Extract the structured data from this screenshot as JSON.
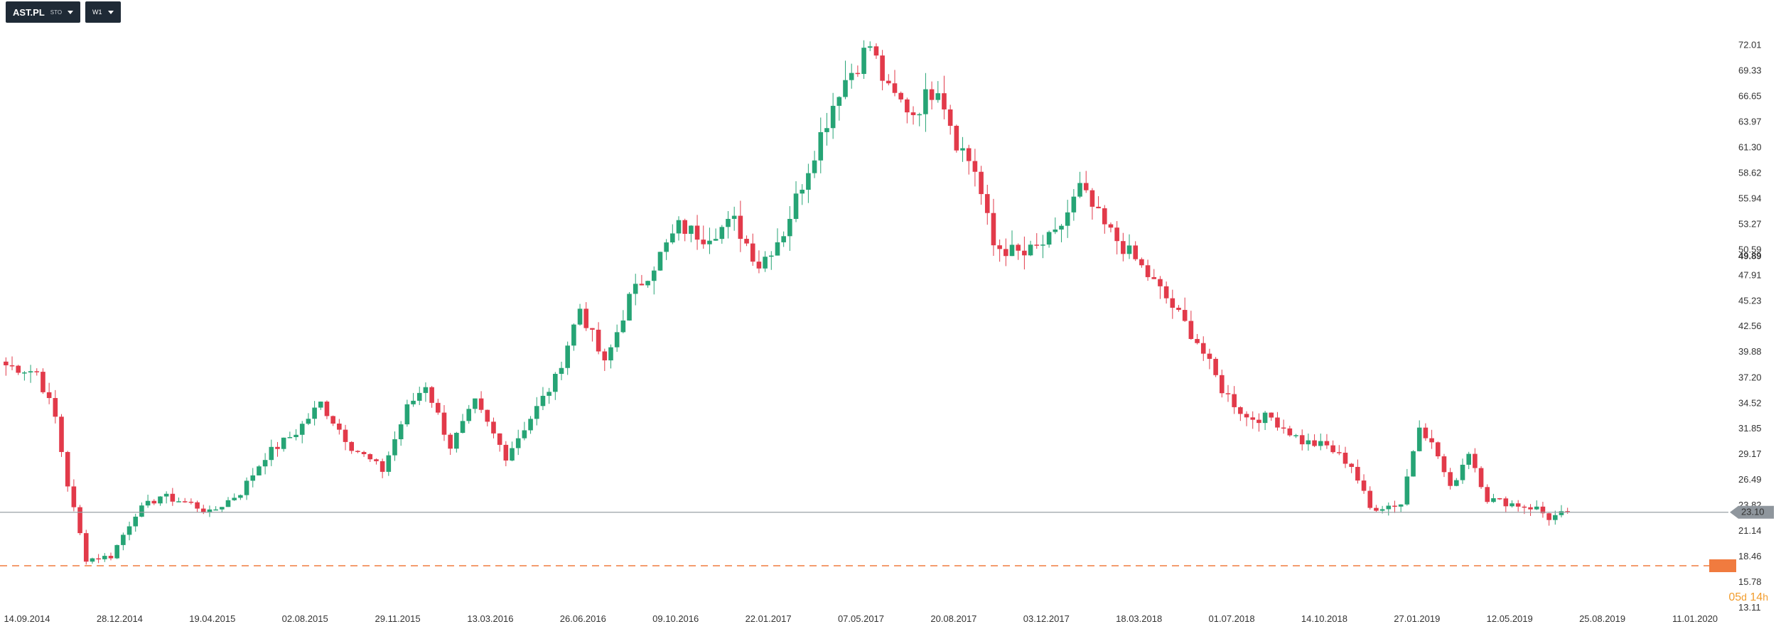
{
  "symbol": {
    "ticker": "AST.PL",
    "market": "STO"
  },
  "timeframe": "W1",
  "countdown": {
    "days": "05",
    "days_unit": "d",
    "hours": "14",
    "hours_unit": "h"
  },
  "colors": {
    "up": "#26a475",
    "down": "#e23a4a",
    "price_line": "#9aa0a6",
    "level_line": "#f07b3f",
    "label_bg": "#f07b3f"
  },
  "chart_data": {
    "type": "candlestick",
    "ylim": [
      13.11,
      74.5
    ],
    "y_ticks": [
      "72.01",
      "69.33",
      "66.65",
      "63.97",
      "61.30",
      "58.62",
      "55.94",
      "53.27",
      "50.59",
      "47.91",
      "45.23",
      "42.56",
      "39.88",
      "37.20",
      "34.52",
      "31.85",
      "29.17",
      "26.49",
      "23.82",
      "21.14",
      "18.46",
      "15.78",
      "13.11"
    ],
    "x_ticks": [
      "14.09.2014",
      "28.12.2014",
      "19.04.2015",
      "02.08.2015",
      "29.11.2015",
      "13.03.2016",
      "26.06.2016",
      "09.10.2016",
      "22.01.2017",
      "07.05.2017",
      "20.08.2017",
      "03.12.2017",
      "18.03.2018",
      "01.07.2018",
      "14.10.2018",
      "27.01.2019",
      "12.05.2019",
      "25.08.2019",
      "11.01.2020"
    ],
    "current_price": 23.1,
    "marked_level": {
      "value": 49.89,
      "label": "49.89"
    },
    "support_level": 17.5,
    "anchors": [
      [
        0,
        38.5
      ],
      [
        5,
        37.8
      ],
      [
        8,
        33.0
      ],
      [
        10,
        26.0
      ],
      [
        13,
        18.2
      ],
      [
        17,
        18.5
      ],
      [
        21,
        23.0
      ],
      [
        25,
        24.8
      ],
      [
        30,
        24.0
      ],
      [
        33,
        23.0
      ],
      [
        38,
        25.2
      ],
      [
        42,
        29.0
      ],
      [
        47,
        31.5
      ],
      [
        51,
        34.5
      ],
      [
        56,
        30.0
      ],
      [
        61,
        27.5
      ],
      [
        65,
        34.0
      ],
      [
        68,
        36.5
      ],
      [
        72,
        30.0
      ],
      [
        76,
        34.5
      ],
      [
        81,
        29.0
      ],
      [
        85,
        33.0
      ],
      [
        89,
        37.0
      ],
      [
        93,
        44.5
      ],
      [
        97,
        38.5
      ],
      [
        101,
        45.5
      ],
      [
        105,
        49.0
      ],
      [
        109,
        53.0
      ],
      [
        113,
        52.0
      ],
      [
        118,
        53.5
      ],
      [
        122,
        49.0
      ],
      [
        126,
        52.5
      ],
      [
        131,
        61.0
      ],
      [
        135,
        67.5
      ],
      [
        140,
        72.0
      ],
      [
        143,
        67.0
      ],
      [
        147,
        65.0
      ],
      [
        151,
        68.0
      ],
      [
        154,
        62.0
      ],
      [
        157,
        59.0
      ],
      [
        160,
        51.0
      ],
      [
        165,
        50.0
      ],
      [
        170,
        52.0
      ],
      [
        174,
        57.0
      ],
      [
        178,
        53.0
      ],
      [
        183,
        49.5
      ],
      [
        188,
        45.5
      ],
      [
        193,
        41.0
      ],
      [
        197,
        36.0
      ],
      [
        201,
        33.0
      ],
      [
        205,
        33.0
      ],
      [
        210,
        30.5
      ],
      [
        214,
        30.0
      ],
      [
        218,
        28.0
      ],
      [
        221,
        23.5
      ],
      [
        226,
        24.0
      ],
      [
        229,
        32.5
      ],
      [
        232,
        29.0
      ],
      [
        234,
        25.5
      ],
      [
        237,
        29.5
      ],
      [
        240,
        24.5
      ],
      [
        244,
        24.0
      ],
      [
        248,
        23.5
      ],
      [
        250,
        22.5
      ],
      [
        253,
        23.1
      ]
    ]
  }
}
